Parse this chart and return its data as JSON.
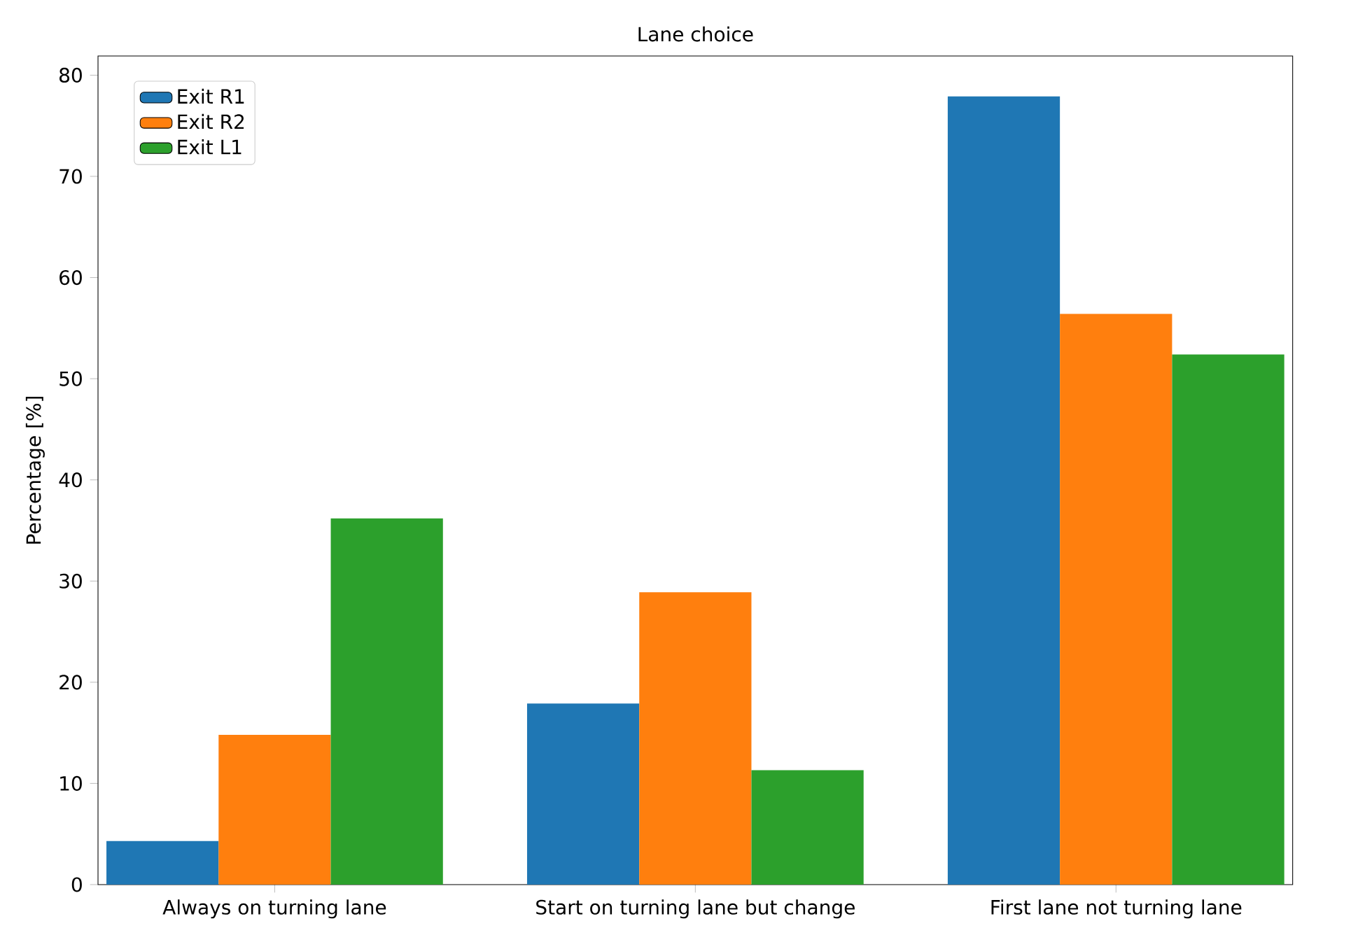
{
  "chart_data": {
    "type": "bar",
    "title": "Lane choice",
    "ylabel": "Percentage [%]",
    "categories": [
      "Always on turning lane",
      "Start on turning lane but change",
      "First lane not turning lane"
    ],
    "series": [
      {
        "name": "Exit R1",
        "color": "#1f77b4",
        "values": [
          4.3,
          17.9,
          77.9
        ]
      },
      {
        "name": "Exit R2",
        "color": "#ff7f0e",
        "values": [
          14.8,
          28.9,
          56.4
        ]
      },
      {
        "name": "Exit L1",
        "color": "#2ca02c",
        "values": [
          36.2,
          11.3,
          52.4
        ]
      }
    ],
    "ylim": [
      0,
      81.9
    ],
    "yticks": [
      0,
      10,
      20,
      30,
      40,
      50,
      60,
      70,
      80
    ],
    "grid": false,
    "legend": "top left"
  }
}
